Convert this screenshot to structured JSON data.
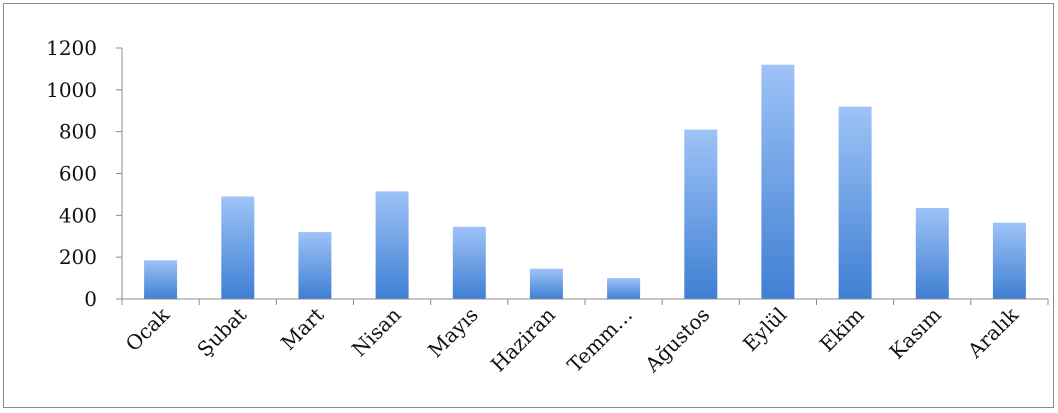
{
  "chart_data": {
    "type": "bar",
    "categories": [
      "Ocak",
      "Şubat",
      "Mart",
      "Nisan",
      "Mayıs",
      "Haziran",
      "Temm…",
      "Ağustos",
      "Eylül",
      "Ekim",
      "Kasım",
      "Aralık"
    ],
    "values": [
      185,
      490,
      320,
      515,
      345,
      145,
      100,
      810,
      1120,
      920,
      435,
      365
    ],
    "ylim": [
      0,
      1200
    ],
    "yticks": [
      "0",
      "200",
      "400",
      "600",
      "800",
      "1000",
      "1200"
    ],
    "grid": false,
    "legend": "none",
    "colors": {
      "bar_top": "#9ec3f7",
      "bar_bottom": "#3f7fd3",
      "axis": "#8c8c8c",
      "frame": "#8c8c8c"
    }
  }
}
